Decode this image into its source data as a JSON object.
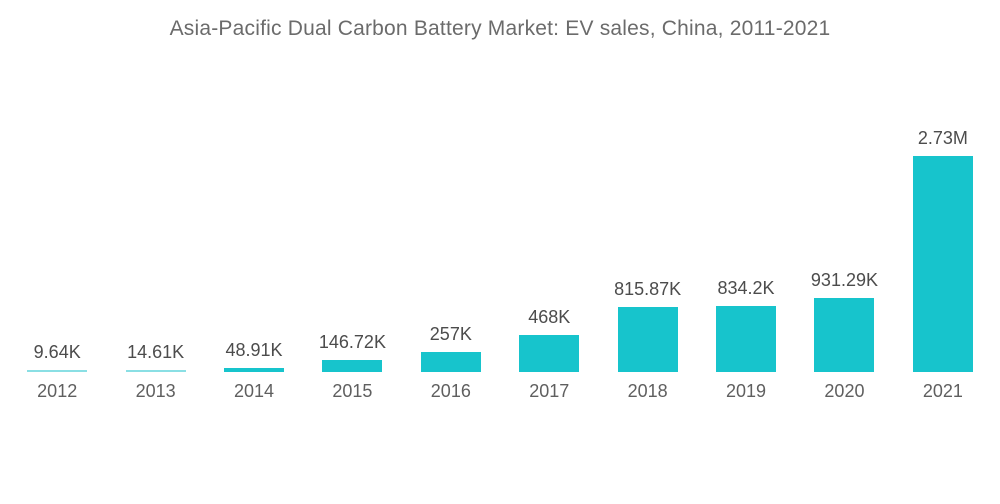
{
  "title": "Asia-Pacific Dual Carbon Battery Market: EV sales, China, 2011-2021",
  "chart_data": {
    "type": "bar",
    "title": "Asia-Pacific Dual Carbon Battery Market: EV sales, China, 2011-2021",
    "categories": [
      "2012",
      "2013",
      "2014",
      "2015",
      "2016",
      "2017",
      "2018",
      "2019",
      "2020",
      "2021"
    ],
    "values": [
      9640,
      14610,
      48910,
      146720,
      257000,
      468000,
      815870,
      834200,
      931290,
      2730000
    ],
    "value_labels": [
      "9.64K",
      "14.61K",
      "48.91K",
      "146.72K",
      "257K",
      "468K",
      "815.87K",
      "834.2K",
      "931.29K",
      "2.73M"
    ],
    "xlabel": "",
    "ylabel": "",
    "ylim": [
      0,
      2730000
    ],
    "grid": false,
    "legend": "none",
    "axes_visible": false
  },
  "colors": {
    "background": "#ffffff",
    "bar": "#17c4cc",
    "bar_thin": "#8adfe4",
    "title_text": "#6b6b6b",
    "value_text": "#4c4c4c",
    "axis_text": "#5f5f5f"
  }
}
